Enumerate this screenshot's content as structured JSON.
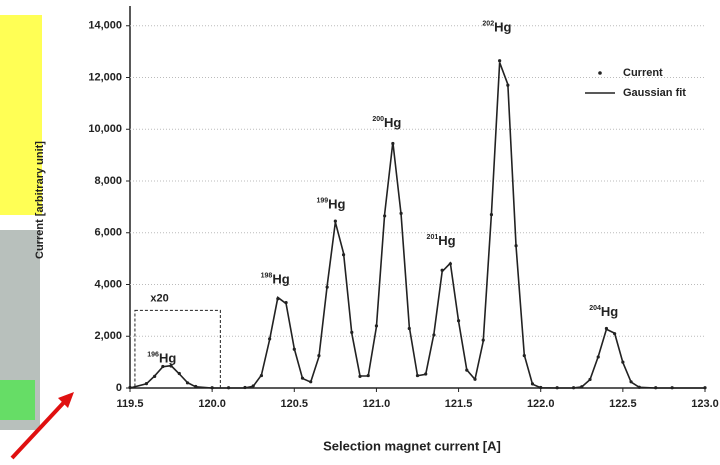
{
  "chart_data": {
    "type": "line",
    "x_label": "Selection magnet current [A]",
    "y_label": "Current [arbitrary unit]",
    "x": [
      119.5,
      119.6,
      119.65,
      119.7,
      119.75,
      119.8,
      119.85,
      119.9,
      120.0,
      120.1,
      120.2,
      120.25,
      120.3,
      120.35,
      120.4,
      120.45,
      120.5,
      120.55,
      120.6,
      120.65,
      120.7,
      120.75,
      120.8,
      120.85,
      120.9,
      120.95,
      121.0,
      121.05,
      121.1,
      121.15,
      121.2,
      121.25,
      121.3,
      121.35,
      121.4,
      121.45,
      121.5,
      121.55,
      121.6,
      121.65,
      121.7,
      121.75,
      121.8,
      121.85,
      121.9,
      121.95,
      122.0,
      122.1,
      122.2,
      122.25,
      122.3,
      122.35,
      122.4,
      122.45,
      122.5,
      122.55,
      122.6,
      122.7,
      122.8,
      123.0
    ],
    "series": [
      {
        "name": "Current",
        "color": "#222222",
        "style": "points",
        "values": [
          20,
          170,
          450,
          830,
          850,
          560,
          200,
          60,
          10,
          10,
          20,
          80,
          480,
          1900,
          3450,
          3300,
          1500,
          380,
          240,
          1250,
          3900,
          6450,
          5150,
          2150,
          450,
          480,
          2400,
          6650,
          9450,
          6750,
          2300,
          480,
          540,
          2050,
          4550,
          4800,
          2600,
          690,
          340,
          1850,
          6700,
          12650,
          11700,
          5500,
          1250,
          160,
          20,
          10,
          10,
          50,
          330,
          1200,
          2300,
          2100,
          1000,
          240,
          30,
          10,
          10,
          10
        ]
      },
      {
        "name": "Gaussian fit",
        "color": "#222222",
        "style": "line",
        "values": [
          0,
          161,
          468,
          821,
          864,
          546,
          207,
          47,
          0,
          0,
          4,
          67,
          500,
          1872,
          3500,
          3263,
          1521,
          368,
          230,
          1209,
          3946,
          6409,
          5207,
          2113,
          467,
          464,
          2366,
          6717,
          9500,
          6717,
          2366,
          474,
          528,
          2096,
          4498,
          4825,
          2581,
          702,
          331,
          1801,
          6730,
          12582,
          11731,
          5466,
          1277,
          146,
          8,
          0,
          2,
          43,
          324,
          1214,
          2270,
          2117,
          986,
          230,
          26,
          0,
          0,
          0
        ]
      }
    ],
    "xlim": [
      119.5,
      123.0
    ],
    "xticks": [
      119.5,
      {
        "value": 120,
        "label": "120.0"
      },
      120.5,
      {
        "value": 121,
        "label": "121.0"
      },
      121.5,
      {
        "value": 122,
        "label": "122.0"
      },
      122.5,
      {
        "value": 123,
        "label": "123.0"
      }
    ],
    "ylim": [
      0,
      14300
    ],
    "yticks": [
      0,
      {
        "value": 2000,
        "label": "2,000"
      },
      {
        "value": 4000,
        "label": "4,000"
      },
      {
        "value": 6000,
        "label": "6,000"
      },
      {
        "value": 8000,
        "label": "8,000"
      },
      {
        "value": 10000,
        "label": "10,000"
      },
      {
        "value": 12000,
        "label": "12,000"
      },
      {
        "value": 14000,
        "label": "14,000"
      }
    ],
    "grid": true,
    "legend": "upper right",
    "annotations": [
      {
        "mass": "196",
        "element": "Hg"
      },
      {
        "mass": "198",
        "element": "Hg"
      },
      {
        "mass": "199",
        "element": "Hg"
      },
      {
        "mass": "200",
        "element": "Hg"
      },
      {
        "mass": "201",
        "element": "Hg"
      },
      {
        "mass": "202",
        "element": "Hg"
      },
      {
        "mass": "204",
        "element": "Hg"
      }
    ],
    "inset_label": "x20"
  }
}
